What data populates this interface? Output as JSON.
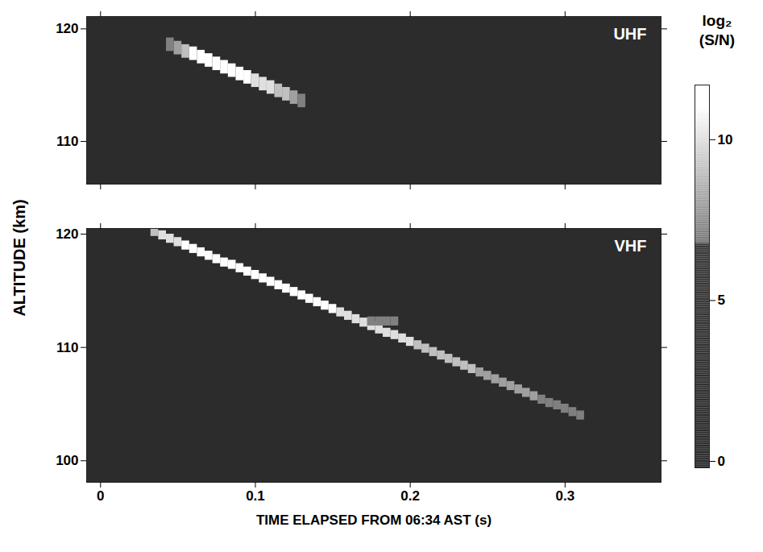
{
  "chart_data": [
    {
      "type": "heatmap",
      "title": "UHF",
      "xlim": [
        -0.009,
        0.362
      ],
      "xticks": [
        0,
        0.1,
        0.2,
        0.3
      ],
      "ylim": [
        106.2,
        121.1
      ],
      "yticks": [
        110,
        120
      ],
      "tick_labels": "y",
      "cell_width": 0.005,
      "cell_height": 1.2,
      "cells": [
        {
          "t": 0.045,
          "alt": 118.6,
          "v": 7
        },
        {
          "t": 0.05,
          "alt": 118.3,
          "v": 8
        },
        {
          "t": 0.055,
          "alt": 118.0,
          "v": 9
        },
        {
          "t": 0.06,
          "alt": 117.8,
          "v": 11
        },
        {
          "t": 0.065,
          "alt": 117.5,
          "v": 11
        },
        {
          "t": 0.07,
          "alt": 117.2,
          "v": 11
        },
        {
          "t": 0.075,
          "alt": 116.9,
          "v": 11
        },
        {
          "t": 0.08,
          "alt": 116.6,
          "v": 11
        },
        {
          "t": 0.085,
          "alt": 116.3,
          "v": 11
        },
        {
          "t": 0.09,
          "alt": 116.0,
          "v": 11
        },
        {
          "t": 0.095,
          "alt": 115.7,
          "v": 11
        },
        {
          "t": 0.1,
          "alt": 115.4,
          "v": 10
        },
        {
          "t": 0.105,
          "alt": 115.1,
          "v": 10
        },
        {
          "t": 0.11,
          "alt": 114.8,
          "v": 10
        },
        {
          "t": 0.115,
          "alt": 114.5,
          "v": 9
        },
        {
          "t": 0.12,
          "alt": 114.2,
          "v": 9
        },
        {
          "t": 0.125,
          "alt": 113.9,
          "v": 8
        },
        {
          "t": 0.13,
          "alt": 113.6,
          "v": 7
        }
      ]
    },
    {
      "type": "heatmap",
      "title": "VHF",
      "xlabel": "TIME ELAPSED FROM 06:34 AST (s)",
      "xlim": [
        -0.009,
        0.362
      ],
      "xticks": [
        0,
        0.1,
        0.2,
        0.3
      ],
      "ylim": [
        98.1,
        120.5
      ],
      "yticks": [
        100,
        110,
        120
      ],
      "cell_width": 0.005,
      "cell_height": 0.8,
      "cells": [
        {
          "t": 0.035,
          "alt": 120.2,
          "v": 9
        },
        {
          "t": 0.04,
          "alt": 119.9,
          "v": 10
        },
        {
          "t": 0.045,
          "alt": 119.6,
          "v": 10
        },
        {
          "t": 0.05,
          "alt": 119.3,
          "v": 10
        },
        {
          "t": 0.055,
          "alt": 119.0,
          "v": 11
        },
        {
          "t": 0.06,
          "alt": 118.7,
          "v": 11
        },
        {
          "t": 0.065,
          "alt": 118.4,
          "v": 11
        },
        {
          "t": 0.07,
          "alt": 118.1,
          "v": 11
        },
        {
          "t": 0.075,
          "alt": 117.8,
          "v": 11
        },
        {
          "t": 0.08,
          "alt": 117.5,
          "v": 11
        },
        {
          "t": 0.085,
          "alt": 117.3,
          "v": 11
        },
        {
          "t": 0.09,
          "alt": 117.0,
          "v": 11
        },
        {
          "t": 0.095,
          "alt": 116.7,
          "v": 11
        },
        {
          "t": 0.1,
          "alt": 116.4,
          "v": 11
        },
        {
          "t": 0.105,
          "alt": 116.1,
          "v": 11
        },
        {
          "t": 0.11,
          "alt": 115.8,
          "v": 11
        },
        {
          "t": 0.115,
          "alt": 115.5,
          "v": 11
        },
        {
          "t": 0.12,
          "alt": 115.2,
          "v": 11
        },
        {
          "t": 0.125,
          "alt": 114.9,
          "v": 11
        },
        {
          "t": 0.13,
          "alt": 114.6,
          "v": 11
        },
        {
          "t": 0.135,
          "alt": 114.3,
          "v": 11
        },
        {
          "t": 0.14,
          "alt": 114.0,
          "v": 11
        },
        {
          "t": 0.145,
          "alt": 113.7,
          "v": 11
        },
        {
          "t": 0.15,
          "alt": 113.4,
          "v": 11
        },
        {
          "t": 0.155,
          "alt": 113.1,
          "v": 10
        },
        {
          "t": 0.16,
          "alt": 112.8,
          "v": 10
        },
        {
          "t": 0.165,
          "alt": 112.5,
          "v": 10
        },
        {
          "t": 0.17,
          "alt": 112.2,
          "v": 10
        },
        {
          "t": 0.175,
          "alt": 111.9,
          "v": 10
        },
        {
          "t": 0.18,
          "alt": 111.6,
          "v": 10
        },
        {
          "t": 0.185,
          "alt": 111.3,
          "v": 10
        },
        {
          "t": 0.19,
          "alt": 111.1,
          "v": 10
        },
        {
          "t": 0.195,
          "alt": 110.8,
          "v": 10
        },
        {
          "t": 0.2,
          "alt": 110.5,
          "v": 10
        },
        {
          "t": 0.205,
          "alt": 110.2,
          "v": 9
        },
        {
          "t": 0.21,
          "alt": 109.9,
          "v": 9
        },
        {
          "t": 0.215,
          "alt": 109.6,
          "v": 9
        },
        {
          "t": 0.22,
          "alt": 109.3,
          "v": 9
        },
        {
          "t": 0.225,
          "alt": 109.0,
          "v": 9
        },
        {
          "t": 0.23,
          "alt": 108.7,
          "v": 9
        },
        {
          "t": 0.235,
          "alt": 108.4,
          "v": 9
        },
        {
          "t": 0.24,
          "alt": 108.1,
          "v": 9
        },
        {
          "t": 0.245,
          "alt": 107.8,
          "v": 8
        },
        {
          "t": 0.25,
          "alt": 107.5,
          "v": 8
        },
        {
          "t": 0.255,
          "alt": 107.2,
          "v": 8
        },
        {
          "t": 0.26,
          "alt": 106.9,
          "v": 8
        },
        {
          "t": 0.265,
          "alt": 106.6,
          "v": 8
        },
        {
          "t": 0.27,
          "alt": 106.3,
          "v": 8
        },
        {
          "t": 0.275,
          "alt": 106.0,
          "v": 8
        },
        {
          "t": 0.28,
          "alt": 105.7,
          "v": 8
        },
        {
          "t": 0.285,
          "alt": 105.4,
          "v": 7
        },
        {
          "t": 0.29,
          "alt": 105.1,
          "v": 7
        },
        {
          "t": 0.295,
          "alt": 104.9,
          "v": 7
        },
        {
          "t": 0.3,
          "alt": 104.6,
          "v": 7
        },
        {
          "t": 0.305,
          "alt": 104.3,
          "v": 7
        },
        {
          "t": 0.31,
          "alt": 104.0,
          "v": 7
        },
        {
          "t": 0.175,
          "alt": 112.3,
          "v": 7
        },
        {
          "t": 0.18,
          "alt": 112.3,
          "v": 7
        },
        {
          "t": 0.185,
          "alt": 112.3,
          "v": 7
        },
        {
          "t": 0.19,
          "alt": 112.3,
          "v": 7
        }
      ]
    }
  ],
  "ylabel": "ALTITUDE (km)",
  "colorbar": {
    "label": "log₂ (S/N)",
    "range": [
      -0.2,
      11.7
    ],
    "ticks": [
      0,
      5,
      10
    ]
  }
}
